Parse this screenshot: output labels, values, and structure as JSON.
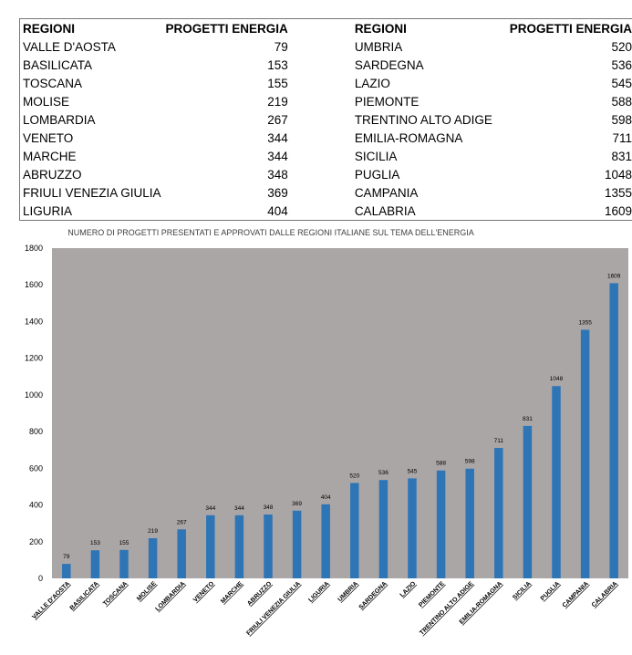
{
  "table": {
    "header_region": "REGIONI",
    "header_projects": "PROGETTI ENERGIA",
    "left": [
      {
        "region": "VALLE D'AOSTA",
        "value": "79"
      },
      {
        "region": "BASILICATA",
        "value": "153"
      },
      {
        "region": "TOSCANA",
        "value": "155"
      },
      {
        "region": "MOLISE",
        "value": "219"
      },
      {
        "region": "LOMBARDIA",
        "value": "267"
      },
      {
        "region": "VENETO",
        "value": "344"
      },
      {
        "region": "MARCHE",
        "value": "344"
      },
      {
        "region": "ABRUZZO",
        "value": "348"
      },
      {
        "region": "FRIULI VENEZIA GIULIA",
        "value": "369"
      },
      {
        "region": "LIGURIA",
        "value": "404"
      }
    ],
    "right": [
      {
        "region": "UMBRIA",
        "value": "520"
      },
      {
        "region": "SARDEGNA",
        "value": "536"
      },
      {
        "region": "LAZIO",
        "value": "545"
      },
      {
        "region": "PIEMONTE",
        "value": "588"
      },
      {
        "region": "TRENTINO ALTO ADIGE",
        "value": "598"
      },
      {
        "region": "EMILIA-ROMAGNA",
        "value": "711"
      },
      {
        "region": "SICILIA",
        "value": "831"
      },
      {
        "region": "PUGLIA",
        "value": "1048"
      },
      {
        "region": "CAMPANIA",
        "value": "1355"
      },
      {
        "region": "CALABRIA",
        "value": "1609"
      }
    ]
  },
  "chart_data": {
    "type": "bar",
    "title": "NUMERO DI PROGETTI PRESENTATI E APPROVATI DALLE REGIONI ITALIANE SUL TEMA DELL'ENERGIA",
    "categories": [
      "VALLE D'AOSTA",
      "BASILICATA",
      "TOSCANA",
      "MOLISE",
      "LOMBARDIA",
      "VENETO",
      "MARCHE",
      "ABRUZZO",
      "FRIULI VENEZIA GIULIA",
      "LIGURIA",
      "UMBRIA",
      "SARDEGNA",
      "LAZIO",
      "PIEMONTE",
      "TRENTINO ALTO ADIGE",
      "EMILIA-ROMAGNA",
      "SICILIA",
      "PUGLIA",
      "CAMPANIA",
      "CALABRIA"
    ],
    "values": [
      79,
      153,
      155,
      219,
      267,
      344,
      344,
      348,
      369,
      404,
      520,
      536,
      545,
      588,
      598,
      711,
      831,
      1048,
      1355,
      1609
    ],
    "yticks": [
      0,
      200,
      400,
      600,
      800,
      1000,
      1200,
      1400,
      1600,
      1800
    ],
    "ylim": [
      0,
      1800
    ],
    "grid": false,
    "legend": "none",
    "colors": {
      "bar": "#2e75b6",
      "plot_bg": "#aba6a6"
    }
  }
}
